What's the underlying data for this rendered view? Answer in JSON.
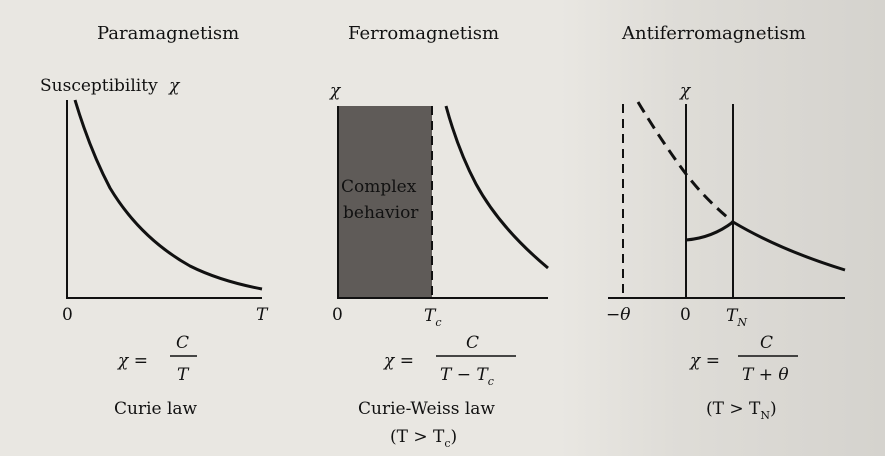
{
  "panels": [
    {
      "title": "Paramagnetism",
      "ylabel_prefix": "Susceptibility",
      "ylabel_symbol": "χ",
      "x_origin": "0",
      "x_end": "T",
      "formula_lhs": "χ =",
      "formula_num": "C",
      "formula_den": "T",
      "law": "Curie law"
    },
    {
      "title": "Ferromagnetism",
      "ylabel_symbol": "χ",
      "x_origin": "0",
      "x_mark": "T",
      "x_mark_sub": "c",
      "region_label_1": "Complex",
      "region_label_2": "behavior",
      "formula_lhs": "χ =",
      "formula_num": "C",
      "formula_den": "T − T",
      "formula_den_sub": "c",
      "law": "Curie-Weiss law",
      "condition": "(T > T",
      "condition_sub": "c",
      "condition_close": ")"
    },
    {
      "title": "Antiferromagnetism",
      "ylabel_symbol": "χ",
      "x_neg": "−θ",
      "x_origin": "0",
      "x_mark": "T",
      "x_mark_sub": "N",
      "formula_lhs": "χ =",
      "formula_num": "C",
      "formula_den": "T + θ",
      "condition": "(T > T",
      "condition_sub": "N",
      "condition_close": ")"
    }
  ],
  "colors": {
    "region_fill": "#5f5b58",
    "ink": "#111111"
  }
}
